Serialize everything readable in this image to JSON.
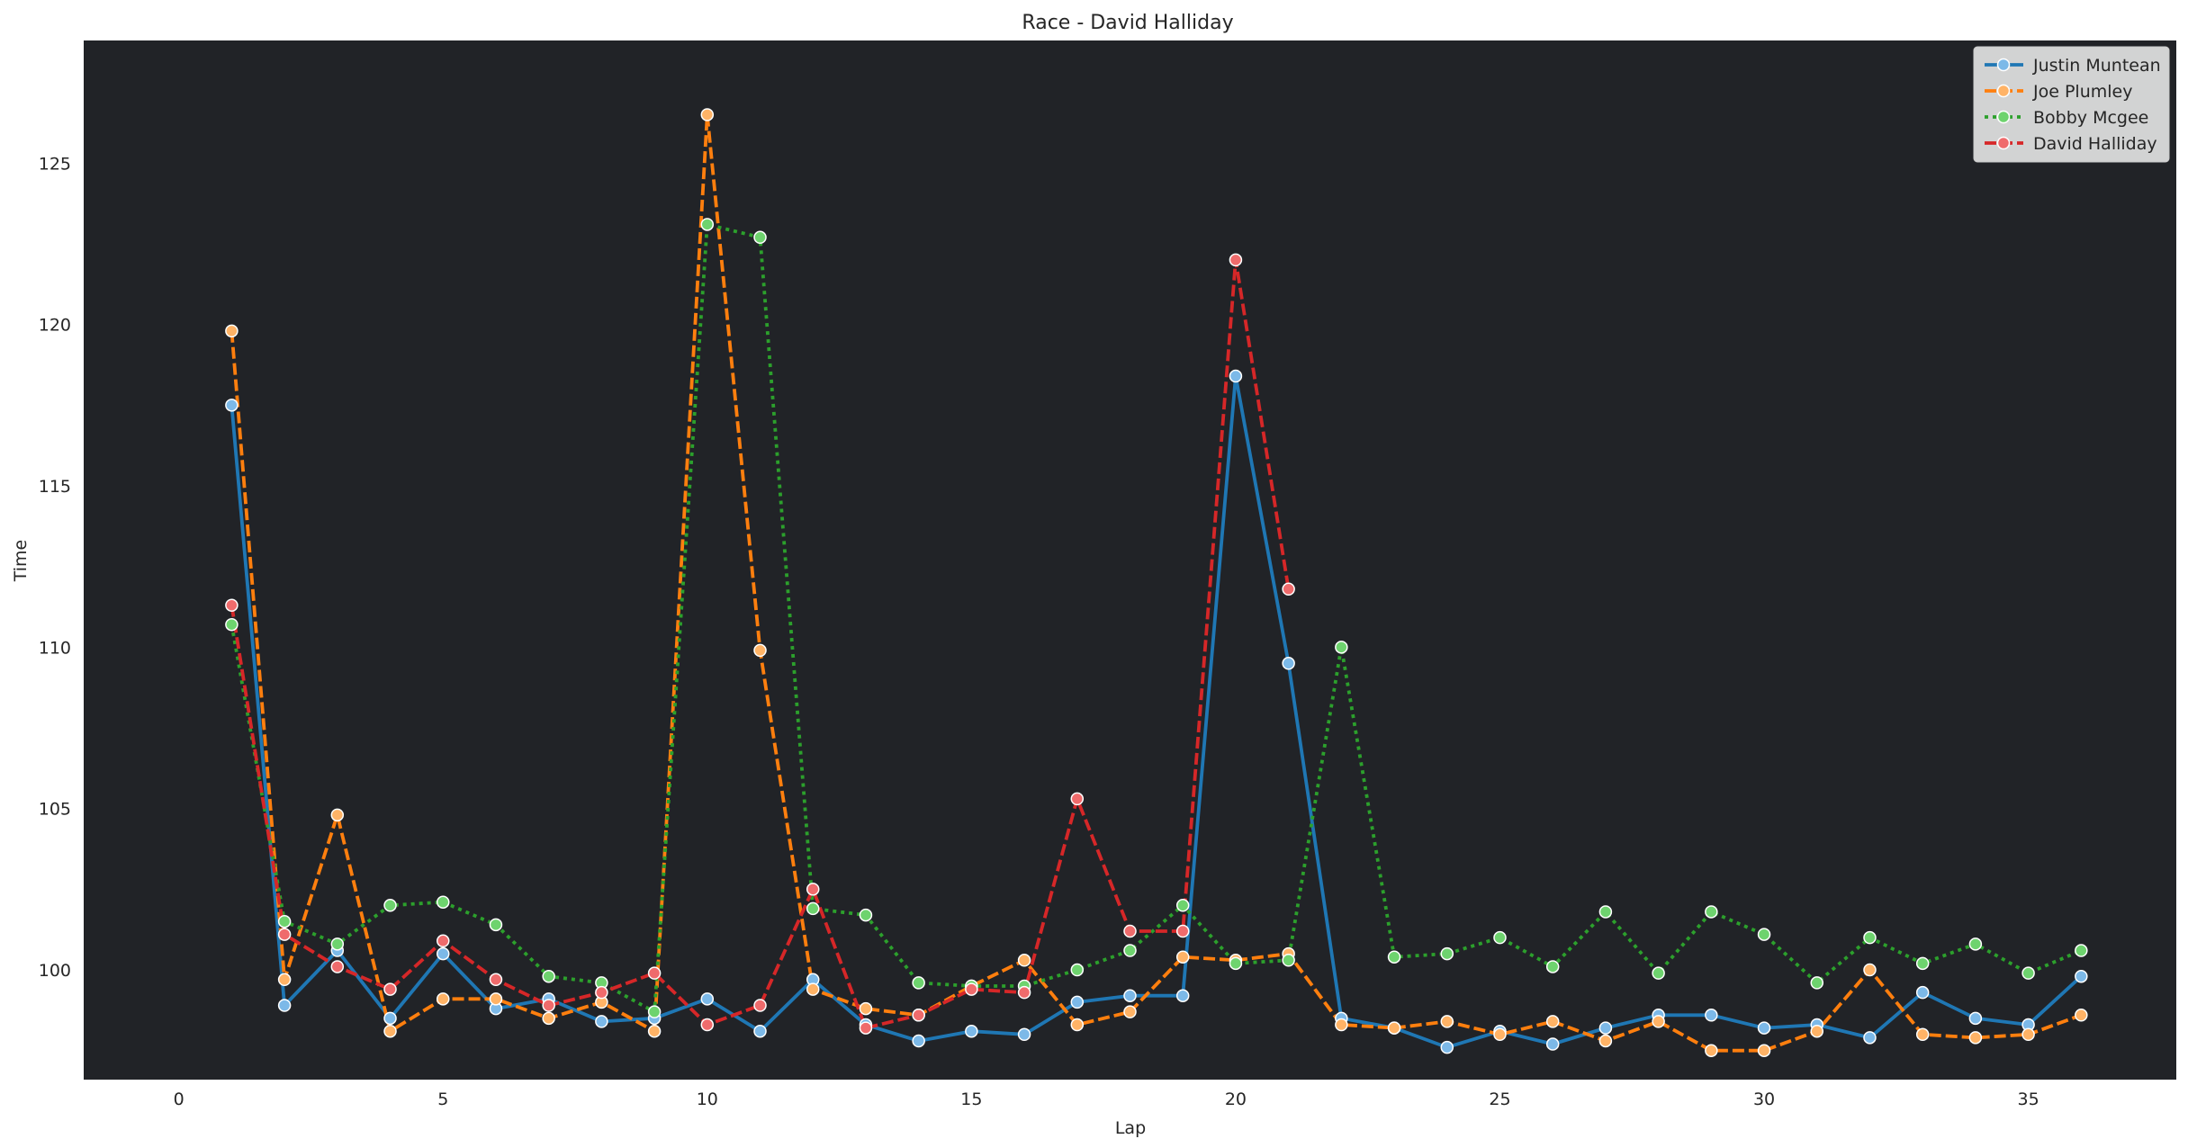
{
  "chart_data": {
    "type": "line",
    "title": "Race - David Halliday",
    "xlabel": "Lap",
    "ylabel": "Time",
    "xlim": [
      -1.8,
      37.8
    ],
    "ylim": [
      96.6,
      128.8
    ],
    "xticks": [
      0,
      5,
      10,
      15,
      20,
      25,
      30,
      35
    ],
    "yticks": [
      100,
      105,
      110,
      115,
      120,
      125
    ],
    "grid": false,
    "plot_background": "#212327",
    "legend_position": "top-right",
    "series": [
      {
        "name": "Justin Muntean",
        "color": "#1f77b4",
        "marker_fill": "#7cb9e8",
        "dash": "solid",
        "x": [
          1,
          2,
          3,
          4,
          5,
          6,
          7,
          8,
          9,
          10,
          11,
          12,
          13,
          14,
          15,
          16,
          17,
          18,
          19,
          20,
          21,
          22,
          23,
          24,
          25,
          26,
          27,
          28,
          29,
          30,
          31,
          32,
          33,
          34,
          35,
          36
        ],
        "y": [
          117.5,
          98.9,
          100.6,
          98.5,
          100.5,
          98.8,
          99.1,
          98.4,
          98.5,
          99.1,
          98.1,
          99.7,
          98.3,
          97.8,
          98.1,
          98.0,
          99.0,
          99.2,
          99.2,
          118.4,
          109.5,
          98.5,
          98.2,
          97.6,
          98.1,
          97.7,
          98.2,
          98.6,
          98.6,
          98.2,
          98.3,
          97.9,
          99.3,
          98.5,
          98.3,
          99.8
        ]
      },
      {
        "name": "Joe Plumley",
        "color": "#ff7f0e",
        "marker_fill": "#ffb366",
        "dash": "dashed",
        "x": [
          1,
          2,
          3,
          4,
          5,
          6,
          7,
          8,
          9,
          10,
          11,
          12,
          13,
          14,
          15,
          16,
          17,
          18,
          19,
          20,
          21,
          22,
          23,
          24,
          25,
          26,
          27,
          28,
          29,
          30,
          31,
          32,
          33,
          34,
          35,
          36
        ],
        "y": [
          119.8,
          99.7,
          104.8,
          98.1,
          99.1,
          99.1,
          98.5,
          99.0,
          98.1,
          126.5,
          109.9,
          99.4,
          98.8,
          98.6,
          99.5,
          100.3,
          98.3,
          98.7,
          100.4,
          100.3,
          100.5,
          98.3,
          98.2,
          98.4,
          98.0,
          98.4,
          97.8,
          98.4,
          97.5,
          97.5,
          98.1,
          100.0,
          98.0,
          97.9,
          98.0,
          98.6
        ]
      },
      {
        "name": "Bobby Mcgee",
        "color": "#2ca02c",
        "marker_fill": "#6ed36e",
        "dash": "dotted",
        "x": [
          1,
          2,
          3,
          4,
          5,
          6,
          7,
          8,
          9,
          10,
          11,
          12,
          13,
          14,
          15,
          16,
          17,
          18,
          19,
          20,
          21,
          22,
          23,
          24,
          25,
          26,
          27,
          28,
          29,
          30,
          31,
          32,
          33,
          34,
          35,
          36
        ],
        "y": [
          110.7,
          101.5,
          100.8,
          102.0,
          102.1,
          101.4,
          99.8,
          99.6,
          98.7,
          123.1,
          122.7,
          101.9,
          101.7,
          99.6,
          99.5,
          99.5,
          100.0,
          100.6,
          102.0,
          100.2,
          100.3,
          110.0,
          100.4,
          100.5,
          101.0,
          100.1,
          101.8,
          99.9,
          101.8,
          101.1,
          99.6,
          101.0,
          100.2,
          100.8,
          99.9,
          100.6
        ]
      },
      {
        "name": "David Halliday",
        "color": "#d62728",
        "marker_fill": "#ef6b6c",
        "dash": "dashed",
        "x": [
          1,
          2,
          3,
          4,
          5,
          6,
          7,
          8,
          9,
          10,
          11,
          12,
          13,
          14,
          15,
          16,
          17,
          18,
          19,
          20,
          21
        ],
        "y": [
          111.3,
          101.1,
          100.1,
          99.4,
          100.9,
          99.7,
          98.9,
          99.3,
          99.9,
          98.3,
          98.9,
          102.5,
          98.2,
          98.6,
          99.4,
          99.3,
          105.3,
          101.2,
          101.2,
          122.0,
          111.8
        ]
      }
    ]
  }
}
